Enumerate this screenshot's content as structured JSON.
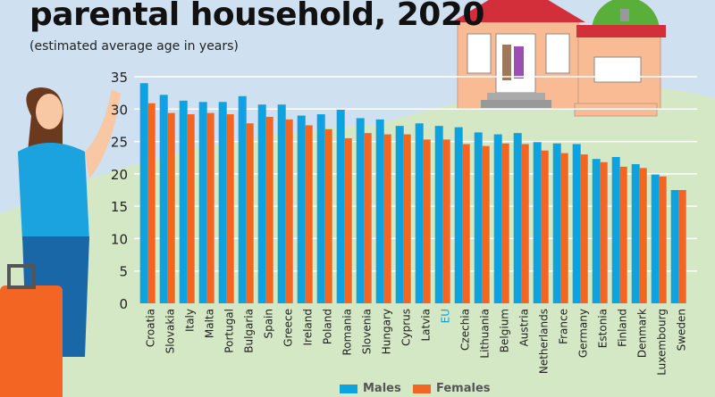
{
  "title": "parental household, 2020",
  "subtitle": "(estimated average age in years)",
  "colors": {
    "males": "#0da2e0",
    "females": "#f26522",
    "eu_label": "#0da2e0",
    "sky": "#cfe0f1",
    "grass": "#d5e8c6"
  },
  "chart_data": {
    "type": "bar",
    "title": "parental household, 2020",
    "subtitle": "(estimated average age in years)",
    "xlabel": "",
    "ylabel": "",
    "ylim": [
      0,
      35
    ],
    "yticks": [
      "0",
      "5",
      "10",
      "15",
      "20",
      "25",
      "30",
      "35"
    ],
    "grid": true,
    "legend": "bottom",
    "categories": [
      "Croatia",
      "Slovakia",
      "Italy",
      "Malta",
      "Portugal",
      "Bulgaria",
      "Spain",
      "Greece",
      "Ireland",
      "Poland",
      "Romania",
      "Slovenia",
      "Hungary",
      "Cyprus",
      "Latvia",
      "EU",
      "Czechia",
      "Lithuania",
      "Belgium",
      "Austria",
      "Netherlands",
      "France",
      "Germany",
      "Estonia",
      "Finland",
      "Denmark",
      "Luxembourg",
      "Sweden"
    ],
    "series": [
      {
        "name": "Males",
        "values": [
          34.0,
          32.2,
          31.3,
          31.1,
          31.1,
          32.0,
          30.7,
          30.7,
          29.0,
          29.2,
          29.9,
          28.6,
          28.4,
          27.4,
          27.8,
          27.4,
          27.2,
          26.4,
          26.1,
          26.3,
          24.9,
          24.7,
          24.6,
          22.3,
          22.6,
          21.5,
          19.9,
          17.5
        ]
      },
      {
        "name": "Females",
        "values": [
          30.9,
          29.4,
          29.2,
          29.4,
          29.2,
          27.8,
          28.8,
          28.4,
          27.5,
          26.9,
          25.5,
          26.3,
          26.1,
          26.1,
          25.3,
          25.3,
          24.6,
          24.3,
          24.7,
          24.6,
          23.6,
          23.2,
          23.0,
          21.8,
          21.1,
          20.9,
          19.6,
          17.5
        ]
      }
    ]
  }
}
